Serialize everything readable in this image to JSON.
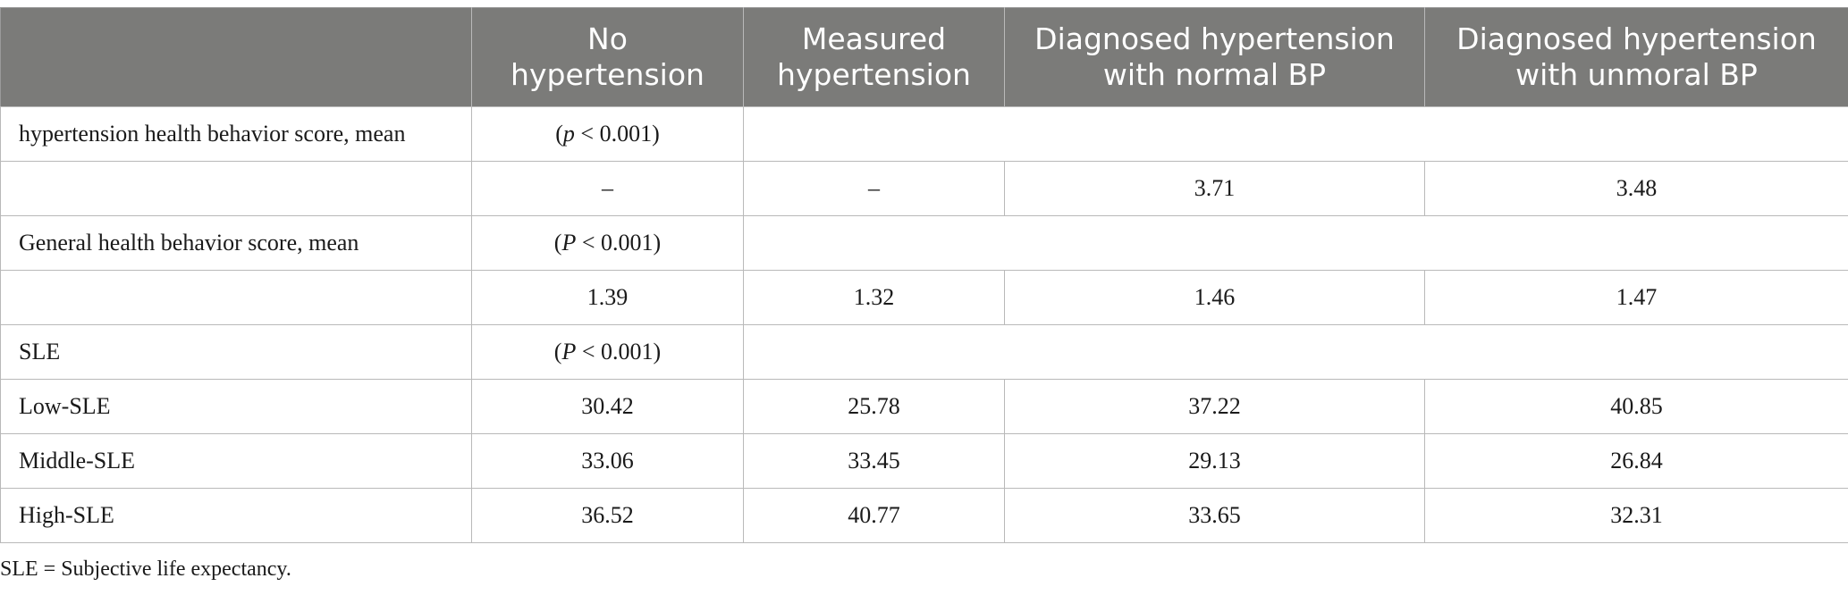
{
  "table": {
    "headers": [
      "",
      "No hypertension",
      "Measured hypertension",
      "Diagnosed hypertension with normal BP",
      "Diagnosed hypertension with unmoral BP"
    ],
    "header_lines": [
      [
        "",
        ""
      ],
      [
        "No",
        "hypertension"
      ],
      [
        "Measured",
        "hypertension"
      ],
      [
        "Diagnosed hypertension",
        "with normal BP"
      ],
      [
        "Diagnosed hypertension",
        "with unmoral BP"
      ]
    ],
    "rows": [
      {
        "type": "section",
        "label": "hypertension health behavior score, mean",
        "p_open": "(",
        "p_symbol": "p",
        "p_rest": " < 0.001)"
      },
      {
        "type": "data",
        "label": "",
        "cells": [
          "–",
          "–",
          "3.71",
          "3.48"
        ]
      },
      {
        "type": "section",
        "label": "General health behavior score, mean",
        "p_open": "(",
        "p_symbol": "P",
        "p_rest": " < 0.001)"
      },
      {
        "type": "data",
        "label": "",
        "cells": [
          "1.39",
          "1.32",
          "1.46",
          "1.47"
        ]
      },
      {
        "type": "section",
        "label": "SLE",
        "p_open": "(",
        "p_symbol": "P",
        "p_rest": " < 0.001)"
      },
      {
        "type": "data",
        "label": "Low-SLE",
        "cells": [
          "30.42",
          "25.78",
          "37.22",
          "40.85"
        ]
      },
      {
        "type": "data",
        "label": "Middle-SLE",
        "cells": [
          "33.06",
          "33.45",
          "29.13",
          "26.84"
        ]
      },
      {
        "type": "data",
        "label": "High-SLE",
        "cells": [
          "36.52",
          "40.77",
          "33.65",
          "32.31"
        ]
      }
    ]
  },
  "footnote": "SLE = Subjective life expectancy.",
  "colors": {
    "header_bg": "#7b7b79",
    "header_text": "#ffffff",
    "grid": "#b9b9b9"
  }
}
